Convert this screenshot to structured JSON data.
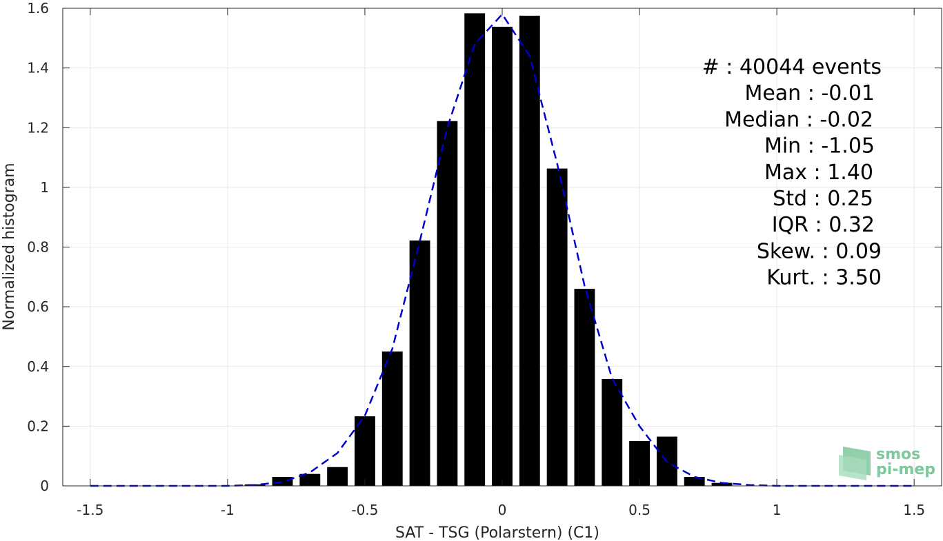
{
  "chart_data": {
    "type": "bar",
    "xlabel": "SAT - TSG (Polarstern) (C1)",
    "ylabel": "Normalized histogram",
    "xlim": [
      -1.6,
      1.6
    ],
    "ylim": [
      0,
      1.6
    ],
    "xticks": [
      -1.5,
      -1,
      -0.5,
      0,
      0.5,
      1,
      1.5
    ],
    "xtick_labels": [
      "-1.5",
      "-1",
      "-0.5",
      "0",
      "0.5",
      "1",
      "1.5"
    ],
    "yticks": [
      0,
      0.2,
      0.4,
      0.6,
      0.8,
      1,
      1.2,
      1.4,
      1.6
    ],
    "ytick_labels": [
      "0",
      "0.2",
      "0.4",
      "0.6",
      "0.8",
      "1",
      "1.2",
      "1.4",
      "1.6"
    ],
    "grid": true,
    "bar_color": "#000000",
    "curve_color": "#0000cc",
    "bars": {
      "x": [
        -0.9,
        -0.8,
        -0.7,
        -0.6,
        -0.5,
        -0.4,
        -0.3,
        -0.2,
        -0.1,
        0.0,
        0.1,
        0.2,
        0.3,
        0.4,
        0.5,
        0.6,
        0.7,
        0.8
      ],
      "values": [
        0.005,
        0.03,
        0.04,
        0.063,
        0.233,
        0.45,
        0.822,
        1.222,
        1.583,
        1.538,
        1.575,
        1.063,
        0.66,
        0.358,
        0.15,
        0.165,
        0.03,
        0.01
      ]
    },
    "fit_curve": {
      "style": "dashed",
      "x": [
        -1.5,
        -1.4,
        -1.3,
        -1.2,
        -1.1,
        -1.0,
        -0.9,
        -0.8,
        -0.7,
        -0.6,
        -0.5,
        -0.4,
        -0.3,
        -0.2,
        -0.1,
        0.0,
        0.1,
        0.2,
        0.3,
        0.4,
        0.5,
        0.6,
        0.7,
        0.8,
        0.9,
        1.0,
        1.1,
        1.2,
        1.3,
        1.4,
        1.5
      ],
      "y": [
        0.0,
        0.0,
        0.0,
        0.0,
        0.0,
        0.0,
        0.003,
        0.013,
        0.045,
        0.11,
        0.235,
        0.46,
        0.82,
        1.2,
        1.48,
        1.58,
        1.44,
        1.08,
        0.67,
        0.36,
        0.2,
        0.08,
        0.03,
        0.01,
        0.003,
        0.0,
        0.0,
        0.0,
        0.0,
        0.0,
        0.0
      ]
    },
    "annotations": [
      "#  : 40044 events",
      "Mean : -0.01",
      "Median : -0.02",
      "Min : -1.05",
      "Max : 1.40",
      "Std : 0.25",
      "IQR : 0.32",
      "Skew. : 0.09",
      "Kurt. : 3.50"
    ],
    "watermark": [
      "smos",
      "pi-mep"
    ]
  }
}
